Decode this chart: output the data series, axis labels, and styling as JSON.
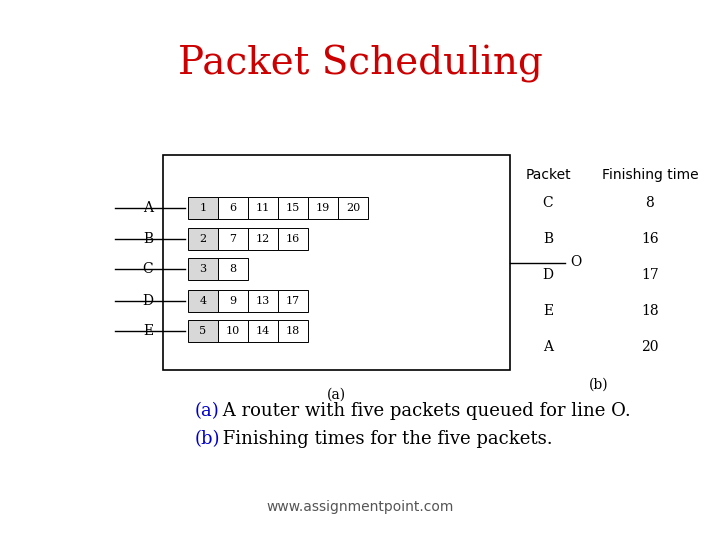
{
  "title": "Packet Scheduling",
  "title_fontsize": 28,
  "title_color": "#cc0000",
  "background_color": "#ffffff",
  "caption_line1_prefix": "(a)",
  "caption_line1_prefix_color": "#0000cc",
  "caption_line1_rest": " A router with five packets queued for line O.",
  "caption_line2_prefix": "(b)",
  "caption_line2_prefix_color": "#0000cc",
  "caption_line2_rest": " Finishing times for the five packets.",
  "caption_fontsize": 13,
  "website": "www.assignmentpoint.com",
  "website_fontsize": 10,
  "queues": [
    {
      "label": "A",
      "packets": [
        "1",
        "6",
        "11",
        "15",
        "19",
        "20"
      ]
    },
    {
      "label": "B",
      "packets": [
        "2",
        "7",
        "12",
        "16"
      ]
    },
    {
      "label": "C",
      "packets": [
        "3",
        "8"
      ]
    },
    {
      "label": "D",
      "packets": [
        "4",
        "9",
        "13",
        "17"
      ]
    },
    {
      "label": "E",
      "packets": [
        "5",
        "10",
        "14",
        "18"
      ]
    }
  ],
  "table_header": [
    "Packet",
    "Finishing time"
  ],
  "table_data": [
    [
      "C",
      "8"
    ],
    [
      "B",
      "16"
    ],
    [
      "D",
      "17"
    ],
    [
      "E",
      "18"
    ],
    [
      "A",
      "20"
    ]
  ],
  "label_a": "(a)",
  "label_b": "(b)"
}
